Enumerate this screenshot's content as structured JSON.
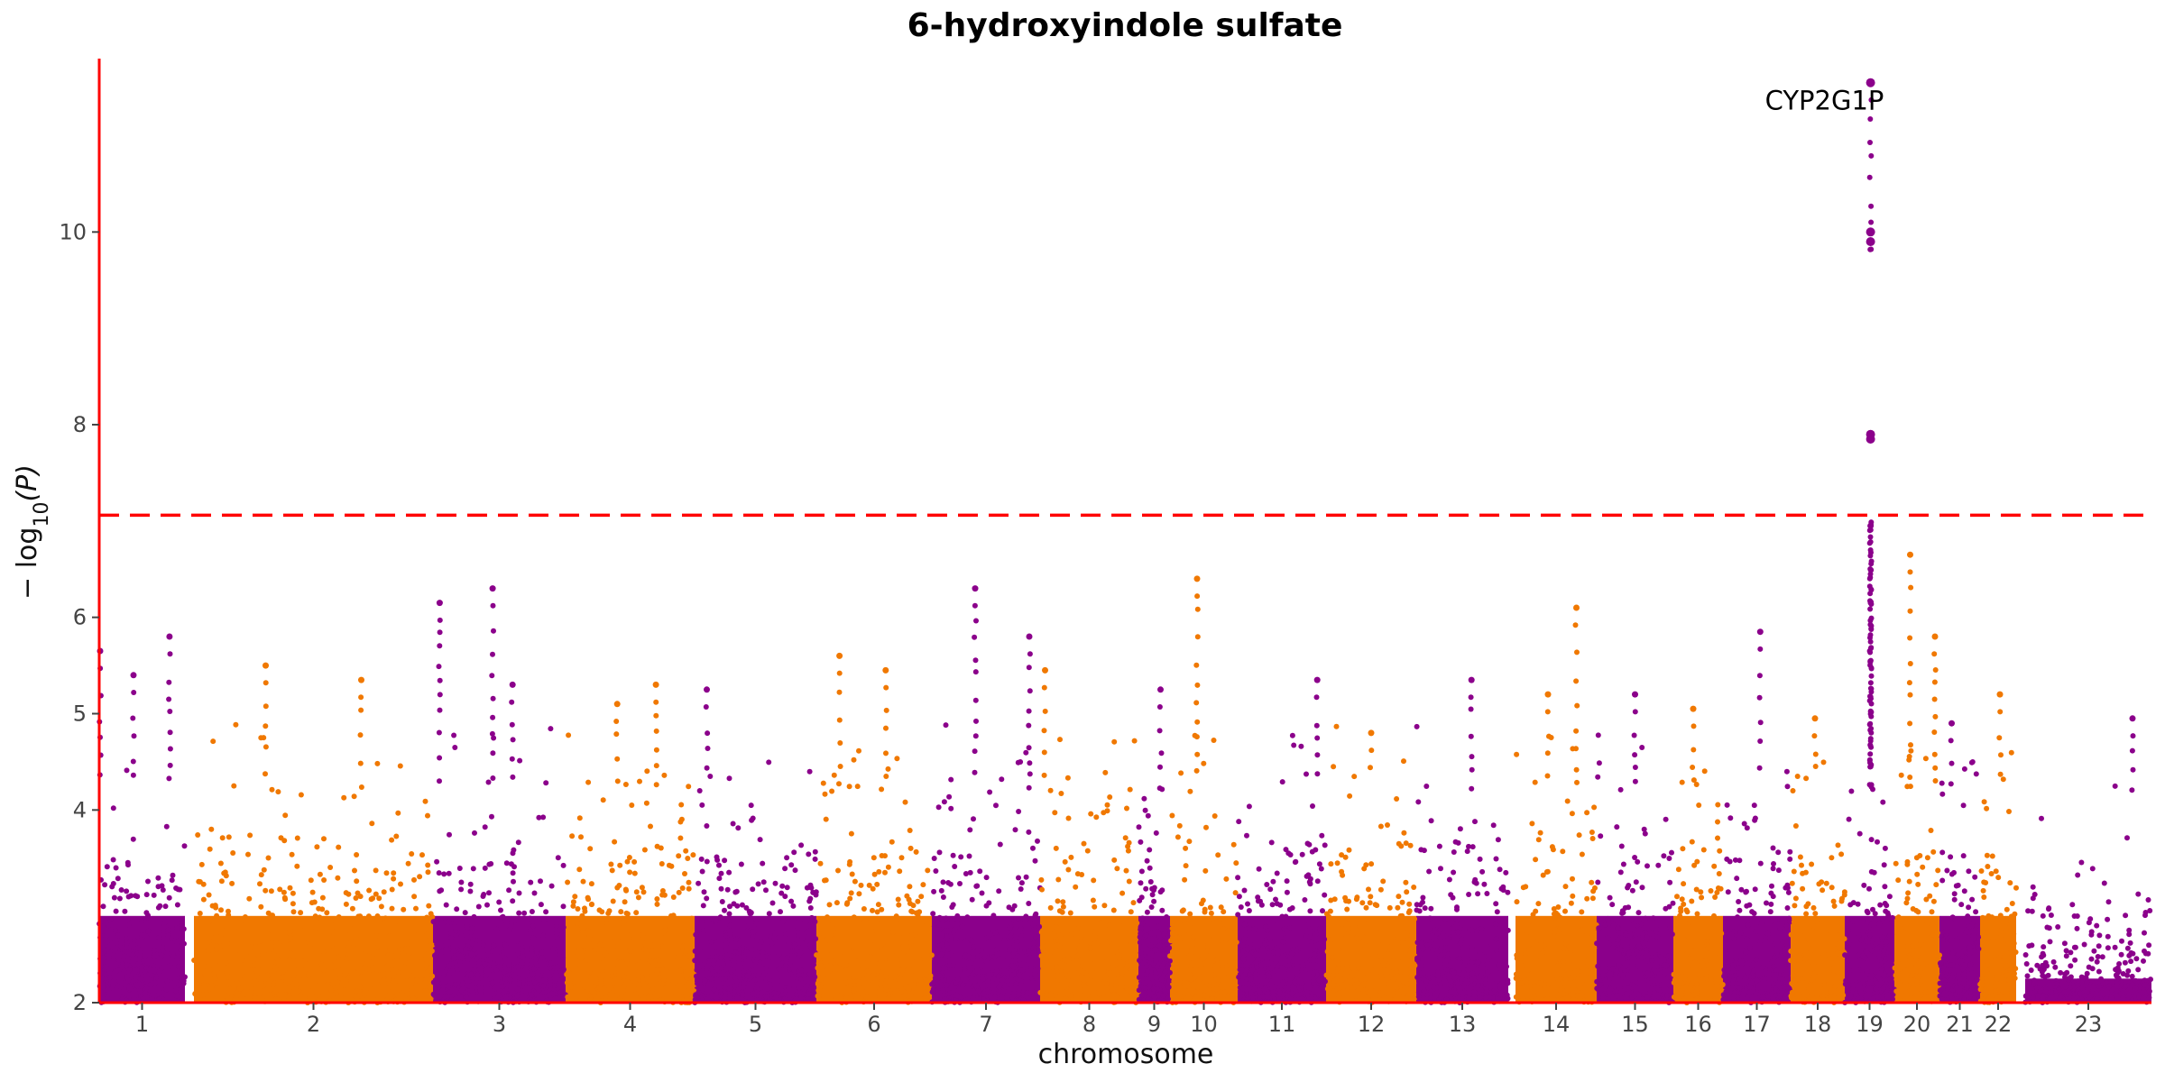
{
  "chart_data": {
    "type": "scatter",
    "subtype": "manhattan",
    "title": "6-hydroxyindole sulfate",
    "xlabel": "chromosome",
    "ylabel_text": "− log",
    "ylabel_subscript": "10",
    "ylabel_suffix": "(P)",
    "ylim": [
      2,
      11.8
    ],
    "yticks": [
      2,
      4,
      5,
      6,
      8,
      10
    ],
    "threshold": 7.06,
    "colors": {
      "odd": "#8b008b",
      "even": "#f07800",
      "axis": "#ff0000",
      "threshold": "#ff0000"
    },
    "grid": false,
    "legend": "none",
    "chromosomes": [
      "1",
      "2",
      "3",
      "4",
      "5",
      "6",
      "7",
      "8",
      "9",
      "10",
      "11",
      "12",
      "13",
      "14",
      "15",
      "16",
      "17",
      "18",
      "19",
      "20",
      "21",
      "22",
      "23"
    ],
    "peaks": [
      {
        "chr": "1",
        "pos": 0.01,
        "p": 5.65
      },
      {
        "chr": "1",
        "pos": 0.4,
        "p": 5.4
      },
      {
        "chr": "1",
        "pos": 0.82,
        "p": 5.8
      },
      {
        "chr": "2",
        "pos": 0.3,
        "p": 5.5
      },
      {
        "chr": "2",
        "pos": 0.7,
        "p": 5.35
      },
      {
        "chr": "3",
        "pos": 0.05,
        "p": 6.15
      },
      {
        "chr": "3",
        "pos": 0.45,
        "p": 6.3
      },
      {
        "chr": "3",
        "pos": 0.6,
        "p": 5.3
      },
      {
        "chr": "4",
        "pos": 0.4,
        "p": 5.1
      },
      {
        "chr": "4",
        "pos": 0.7,
        "p": 5.3
      },
      {
        "chr": "5",
        "pos": 0.1,
        "p": 5.25
      },
      {
        "chr": "6",
        "pos": 0.2,
        "p": 5.6
      },
      {
        "chr": "6",
        "pos": 0.6,
        "p": 5.45
      },
      {
        "chr": "7",
        "pos": 0.4,
        "p": 6.3
      },
      {
        "chr": "7",
        "pos": 0.9,
        "p": 5.8
      },
      {
        "chr": "8",
        "pos": 0.05,
        "p": 5.45
      },
      {
        "chr": "9",
        "pos": 0.7,
        "p": 5.25
      },
      {
        "chr": "10",
        "pos": 0.4,
        "p": 6.4
      },
      {
        "chr": "11",
        "pos": 0.9,
        "p": 5.35
      },
      {
        "chr": "12",
        "pos": 0.5,
        "p": 4.8
      },
      {
        "chr": "13",
        "pos": 0.6,
        "p": 5.35
      },
      {
        "chr": "14",
        "pos": 0.4,
        "p": 5.2
      },
      {
        "chr": "14",
        "pos": 0.75,
        "p": 6.1
      },
      {
        "chr": "15",
        "pos": 0.5,
        "p": 5.2
      },
      {
        "chr": "16",
        "pos": 0.4,
        "p": 5.05
      },
      {
        "chr": "17",
        "pos": 0.55,
        "p": 5.85
      },
      {
        "chr": "18",
        "pos": 0.45,
        "p": 4.95
      },
      {
        "chr": "19",
        "pos": 0.52,
        "p": 11.55
      },
      {
        "chr": "19",
        "pos": 0.52,
        "p": 10.0
      },
      {
        "chr": "19",
        "pos": 0.52,
        "p": 9.9
      },
      {
        "chr": "19",
        "pos": 0.52,
        "p": 7.9
      },
      {
        "chr": "19",
        "pos": 0.52,
        "p": 7.85
      },
      {
        "chr": "19",
        "pos": 0.52,
        "p": 6.95
      },
      {
        "chr": "20",
        "pos": 0.35,
        "p": 6.65
      },
      {
        "chr": "20",
        "pos": 0.9,
        "p": 5.8
      },
      {
        "chr": "21",
        "pos": 0.3,
        "p": 4.9
      },
      {
        "chr": "22",
        "pos": 0.55,
        "p": 5.2
      },
      {
        "chr": "23",
        "pos": 0.85,
        "p": 4.95
      }
    ],
    "annotations": [
      {
        "label": "CYP2G1P",
        "chr": "19",
        "p": 11.55
      }
    ]
  }
}
